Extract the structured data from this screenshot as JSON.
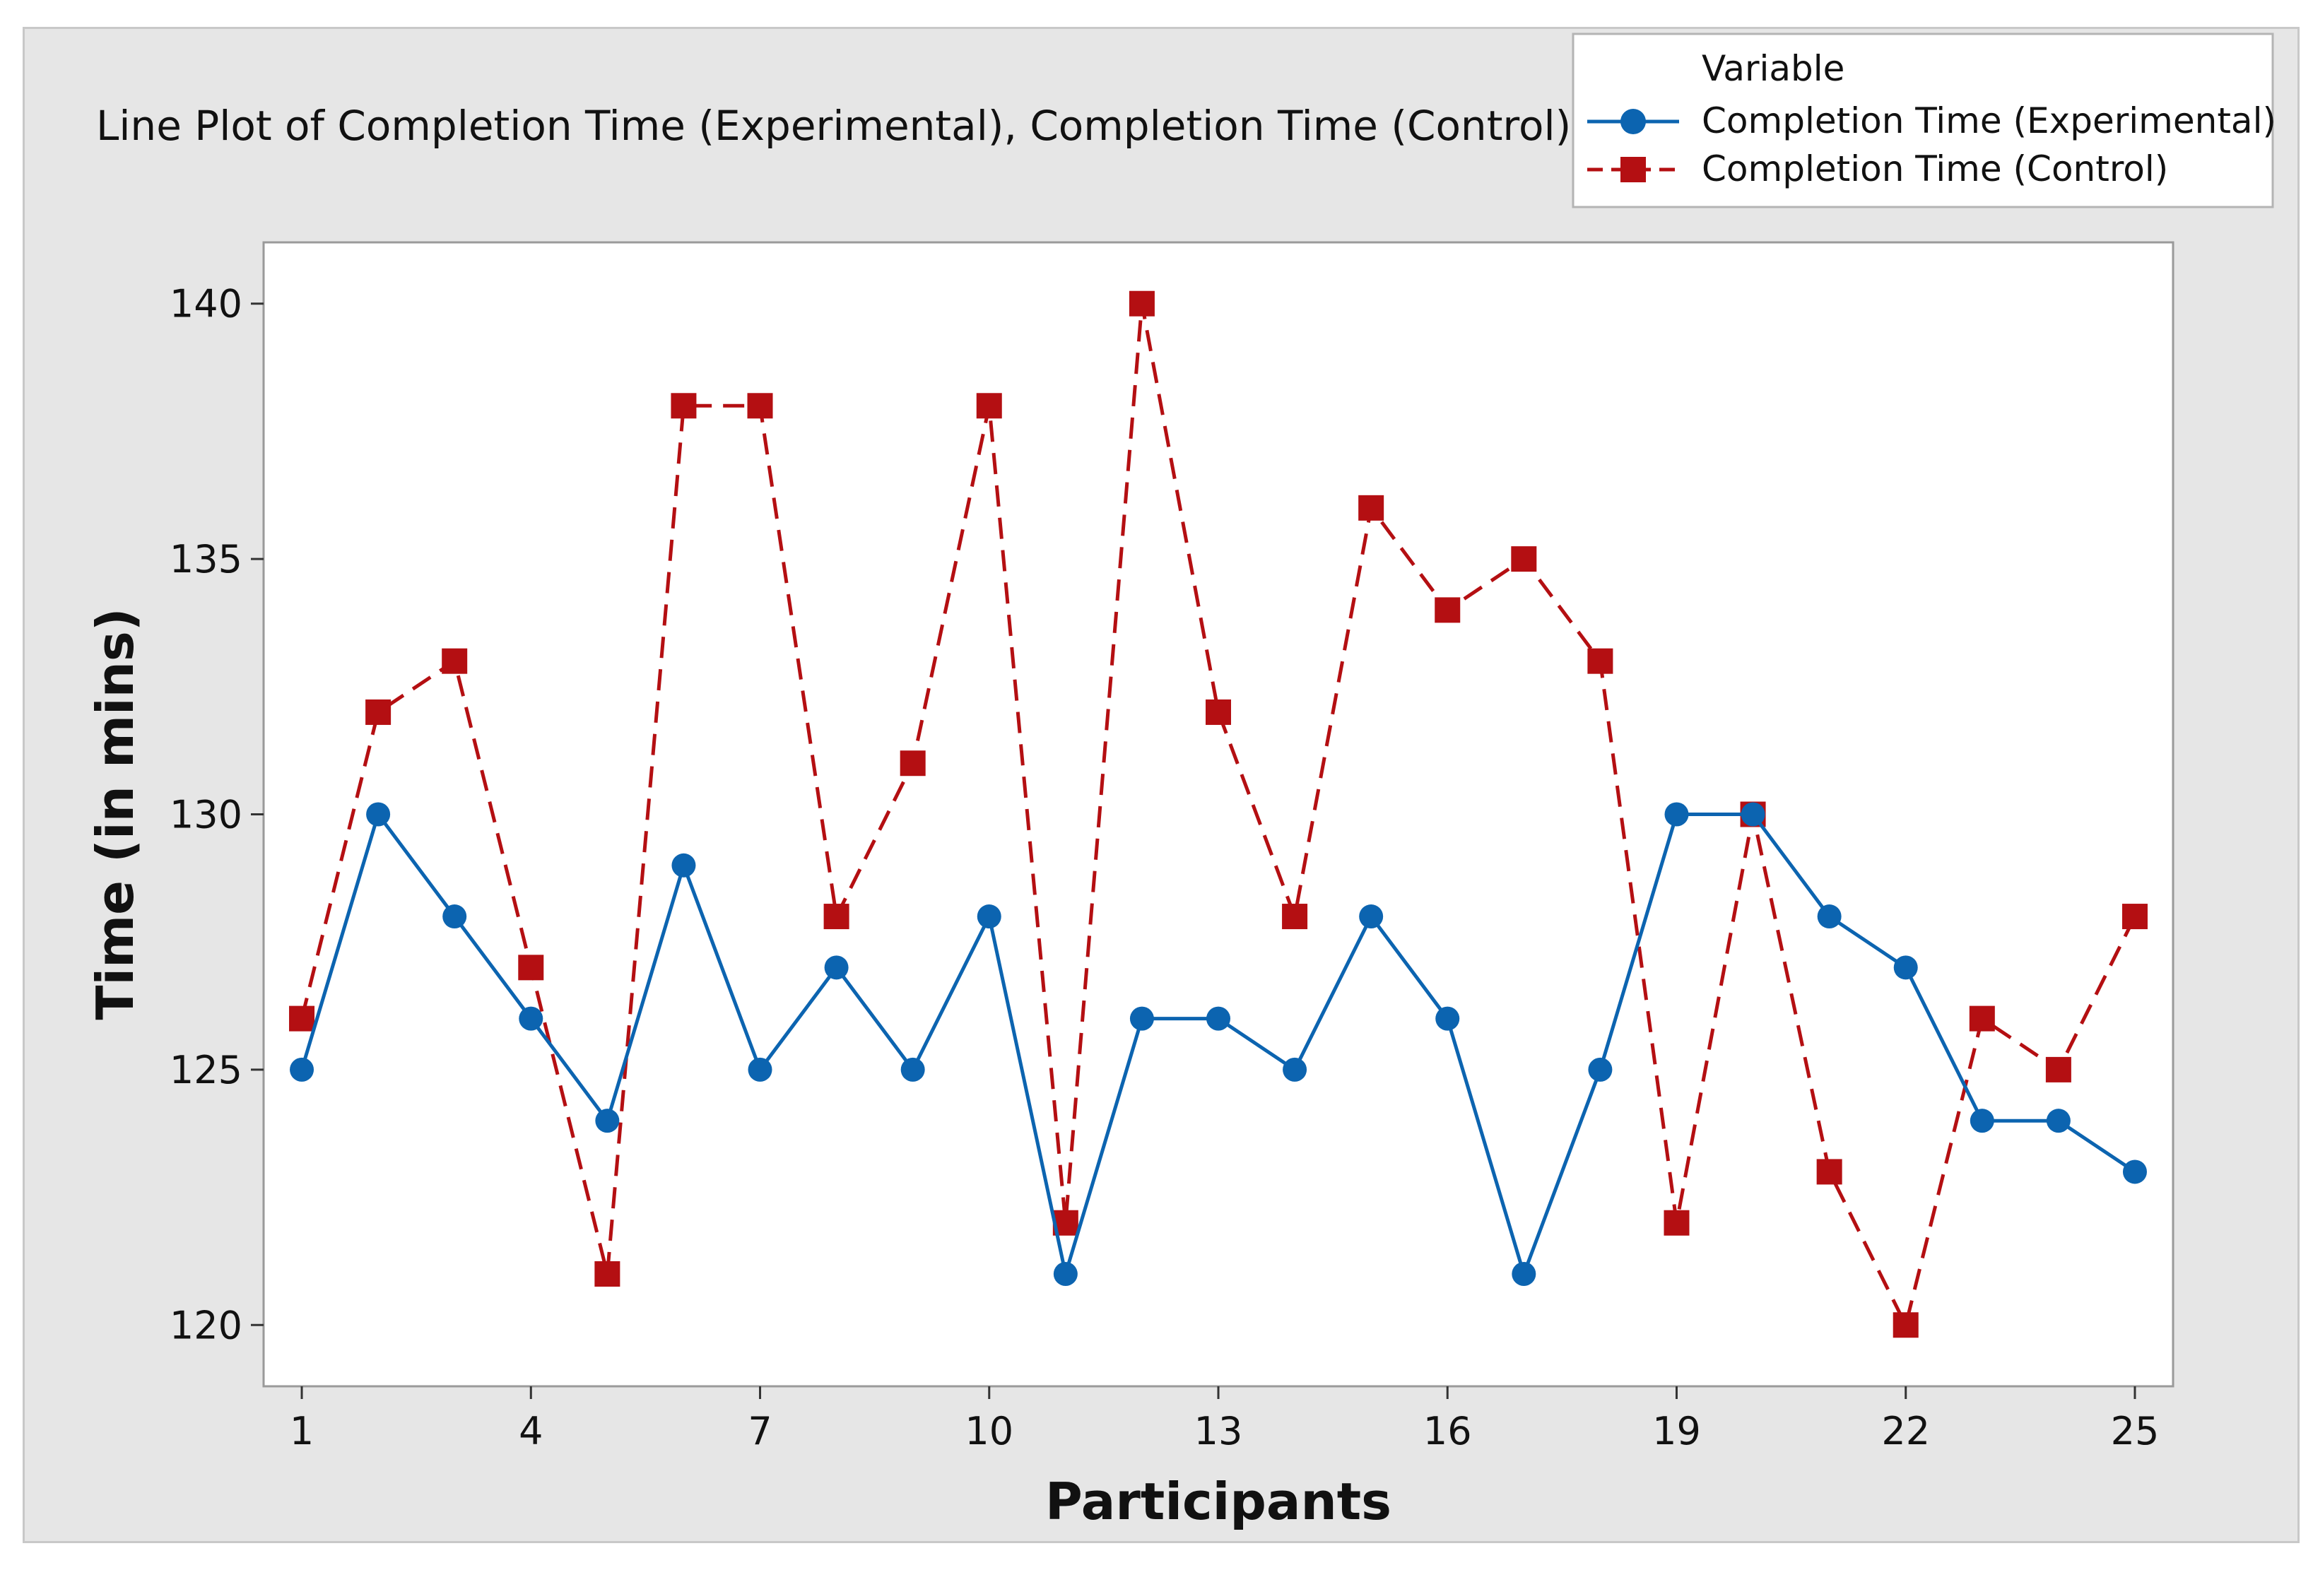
{
  "chart_data": {
    "type": "line",
    "title": "Line Plot of Completion Time (Experimental), Completion Time (Control)",
    "xlabel": "Participants",
    "ylabel": "Time (in mins)",
    "x": [
      1,
      2,
      3,
      4,
      5,
      6,
      7,
      8,
      9,
      10,
      11,
      12,
      13,
      14,
      15,
      16,
      17,
      18,
      19,
      20,
      21,
      22,
      23,
      24,
      25
    ],
    "xticks": [
      1,
      4,
      7,
      10,
      13,
      16,
      19,
      22,
      25
    ],
    "yticks": [
      120,
      125,
      130,
      135,
      140
    ],
    "xlim": [
      0.5,
      25.5
    ],
    "ylim": [
      118.8,
      141.2
    ],
    "grid": false,
    "legend": {
      "title": "Variable",
      "position": "top-right, outside plot"
    },
    "series": [
      {
        "name": "Completion Time (Experimental)",
        "color": "#0c64b0",
        "marker": "circle",
        "line_style": "solid",
        "values": [
          125,
          130,
          128,
          126,
          124,
          129,
          125,
          127,
          125,
          128,
          121,
          126,
          126,
          125,
          128,
          126,
          121,
          125,
          130,
          130,
          128,
          127,
          124,
          124,
          123
        ]
      },
      {
        "name": "Completion Time (Control)",
        "color": "#b40f12",
        "marker": "square",
        "line_style": "dashed",
        "values": [
          126,
          132,
          133,
          127,
          121,
          138,
          138,
          128,
          131,
          138,
          122,
          140,
          132,
          128,
          136,
          134,
          135,
          133,
          122,
          130,
          123,
          120,
          126,
          125,
          128
        ]
      }
    ]
  }
}
